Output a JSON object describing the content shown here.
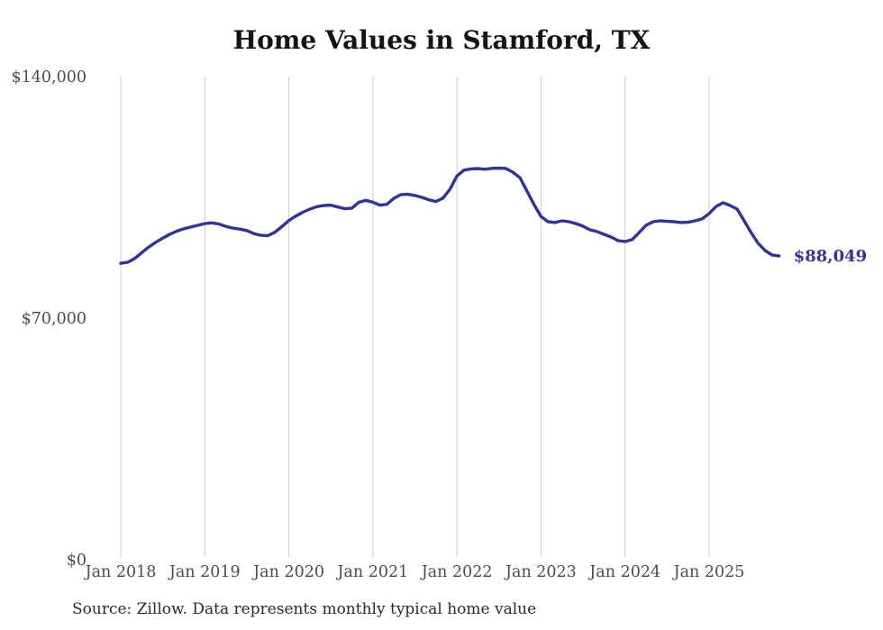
{
  "page": {
    "background_color": "#ffffff"
  },
  "chart_data": {
    "type": "line",
    "title": "Home Values in Stamford, TX",
    "source_note": "Source: Zillow. Data represents monthly typical home value",
    "end_label": "$88,049",
    "line_color": "#32329b",
    "grid_color": "#cccccc",
    "axis_label_color": "#4c4c4c",
    "title_color": "#131313",
    "grid": "vertical-only",
    "legend_position": "none",
    "xlabel": "",
    "ylabel": "",
    "ylim": [
      0,
      140000
    ],
    "y_ticks": [
      {
        "label": "$140,000",
        "value": 140000
      },
      {
        "label": "$70,000",
        "value": 70000
      },
      {
        "label": "$0",
        "value": 0
      }
    ],
    "x_ticks": [
      {
        "label": "Jan 2018",
        "month_index": 0
      },
      {
        "label": "Jan 2019",
        "month_index": 12
      },
      {
        "label": "Jan 2020",
        "month_index": 24
      },
      {
        "label": "Jan 2021",
        "month_index": 36
      },
      {
        "label": "Jan 2022",
        "month_index": 48
      },
      {
        "label": "Jan 2023",
        "month_index": 60
      },
      {
        "label": "Jan 2024",
        "month_index": 72
      },
      {
        "label": "Jan 2025",
        "month_index": 84
      }
    ],
    "series": [
      {
        "name": "Monthly typical home value",
        "start_month": "2018-01",
        "end_month": "2025-11",
        "cadence": "monthly",
        "values": [
          85900,
          86200,
          87300,
          89000,
          90600,
          92000,
          93200,
          94300,
          95200,
          95900,
          96400,
          96900,
          97400,
          97600,
          97300,
          96600,
          96100,
          95800,
          95400,
          94500,
          94000,
          93900,
          94900,
          96500,
          98300,
          99600,
          100700,
          101600,
          102300,
          102650,
          102750,
          102200,
          101700,
          101900,
          103600,
          104150,
          103600,
          102750,
          103000,
          104750,
          105800,
          105900,
          105550,
          105000,
          104300,
          103800,
          104800,
          107350,
          111200,
          112900,
          113250,
          113350,
          113150,
          113400,
          113500,
          113350,
          112300,
          110700,
          106800,
          102900,
          99500,
          97950,
          97700,
          98200,
          97950,
          97400,
          96650,
          95600,
          95100,
          94300,
          93500,
          92450,
          92200,
          92750,
          94800,
          96900,
          97950,
          98200,
          98050,
          97950,
          97700,
          97800,
          98200,
          98750,
          100300,
          102400,
          103450,
          102650,
          101600,
          98200,
          94800,
          91700,
          89600,
          88300,
          88049
        ]
      }
    ]
  }
}
